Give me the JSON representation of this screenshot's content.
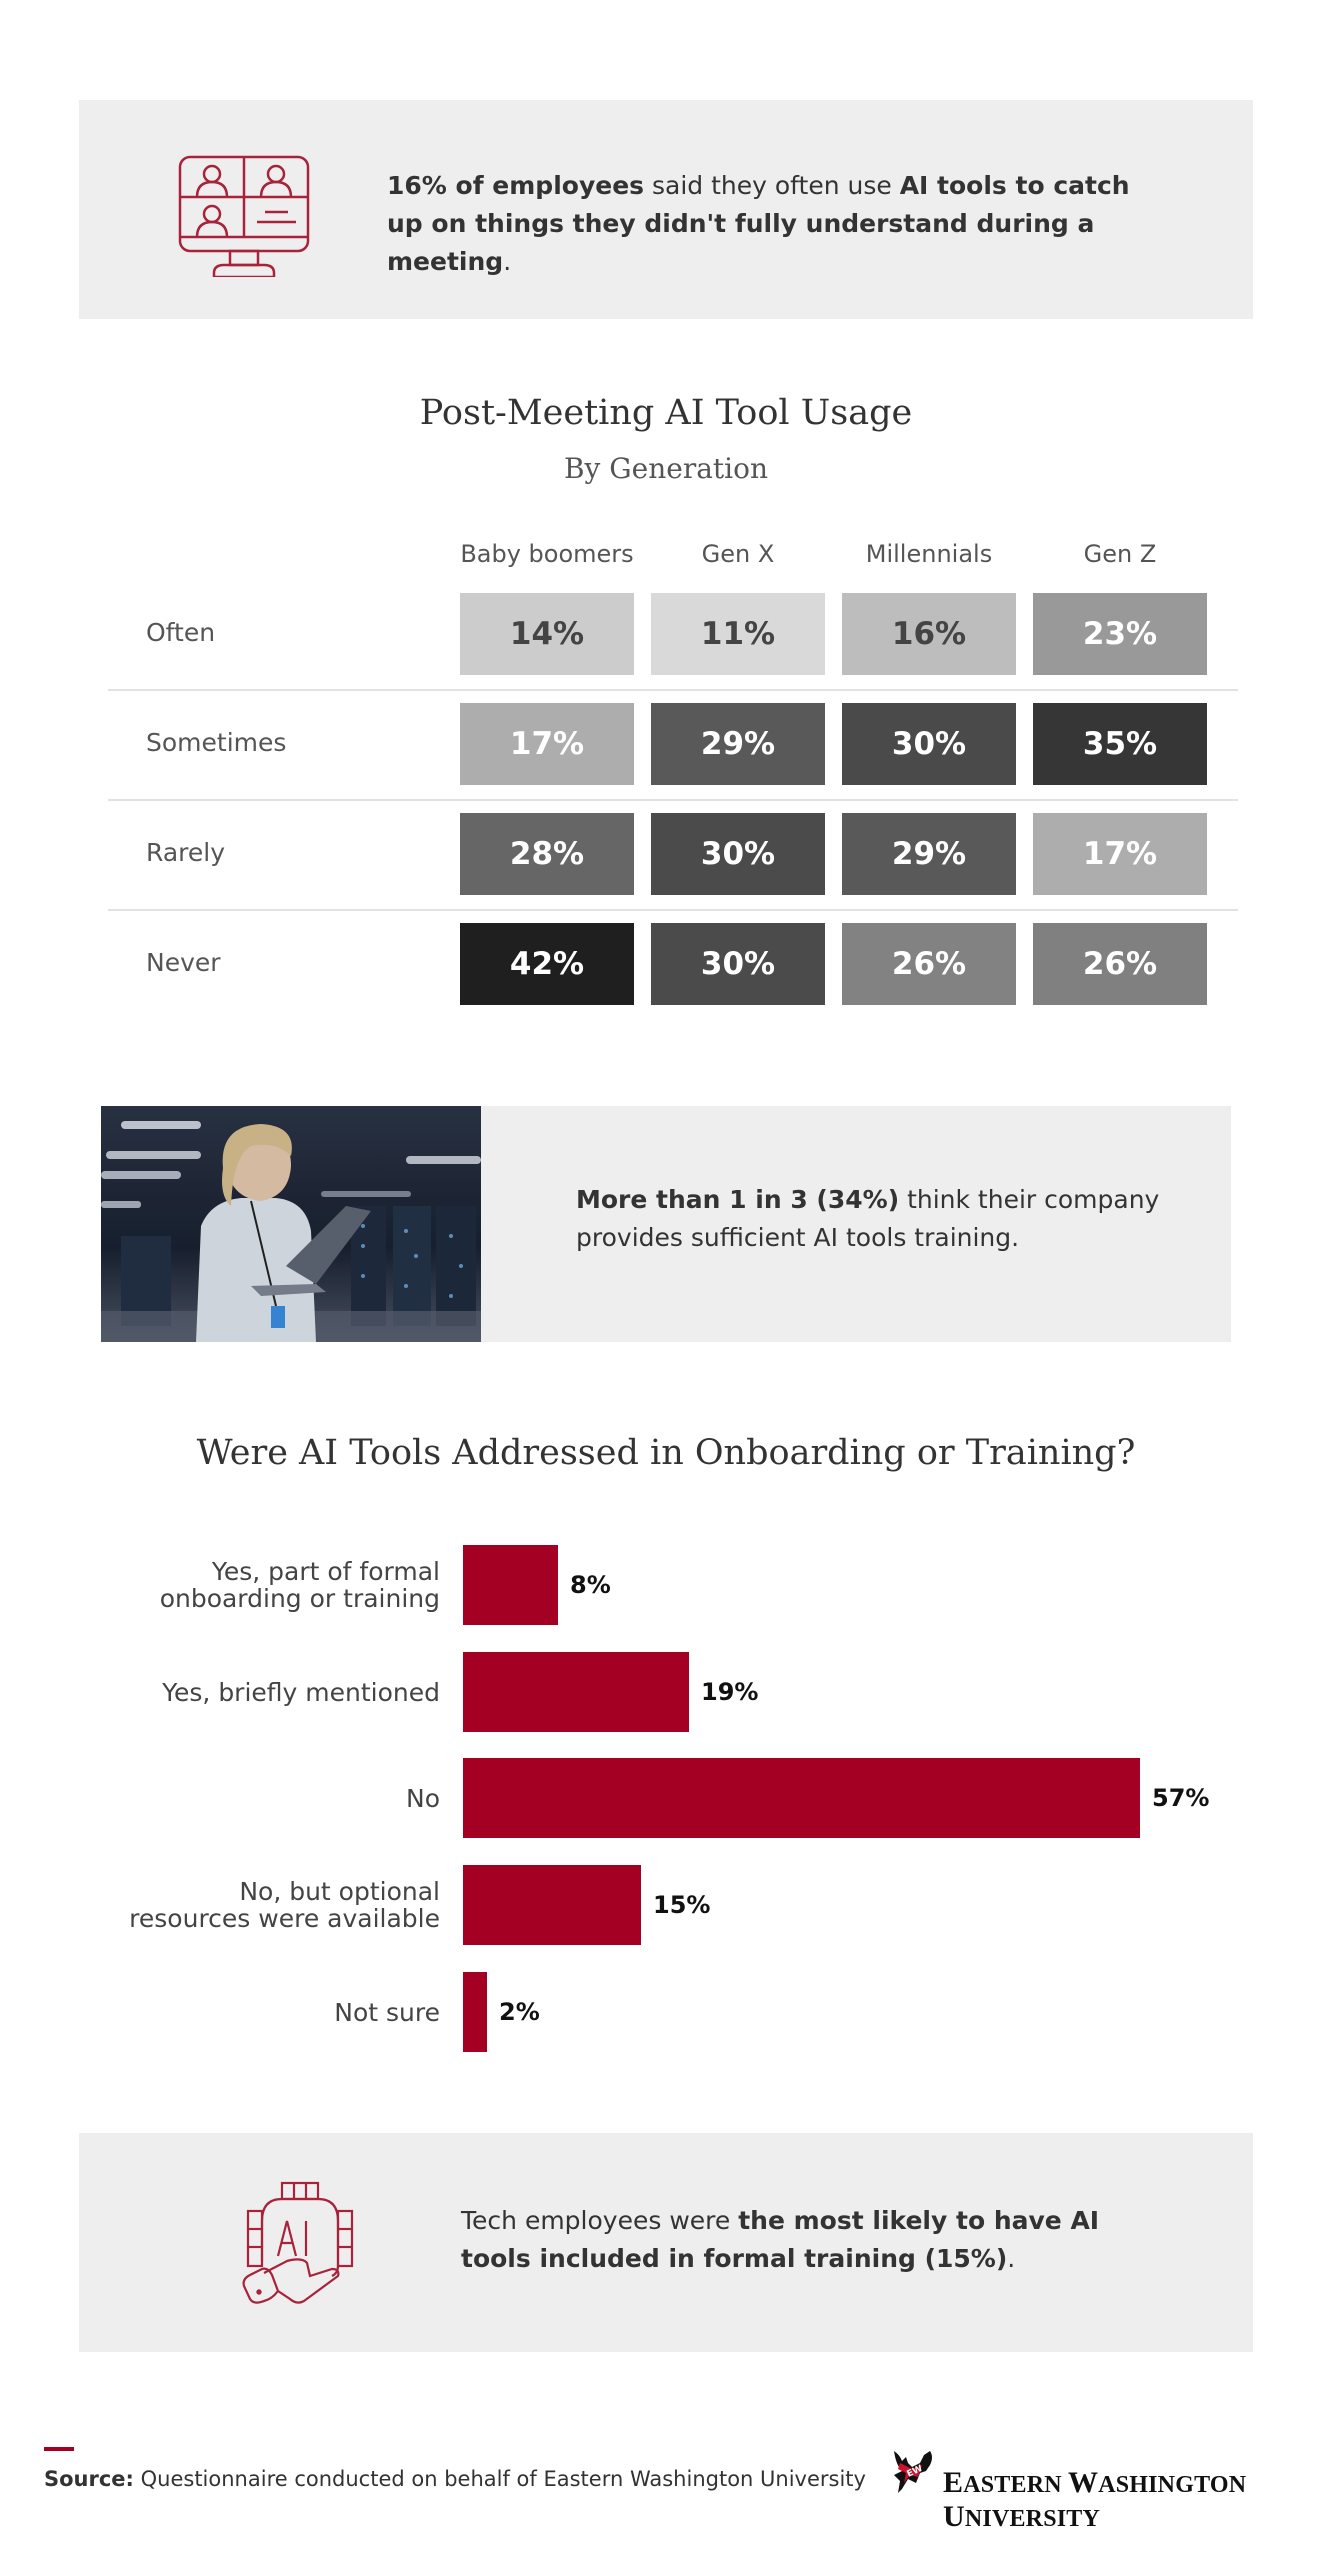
{
  "callout_top": {
    "icon": "video-conference-monitor-icon",
    "text_bold_1": "16% of employees",
    "text_1": " said they often use ",
    "text_bold_2": "AI tools to catch up on things they didn't fully understand during a meeting",
    "text_2": "."
  },
  "heatmap": {
    "title": "Post-Meeting AI Tool Usage",
    "subtitle": "By Generation",
    "columns": [
      "Baby boomers",
      "Gen X",
      "Millennials",
      "Gen Z"
    ],
    "rows": [
      {
        "label": "Often",
        "values": [
          "14%",
          "11%",
          "16%",
          "23%"
        ],
        "bg": [
          "#cccccc",
          "#d9d9d9",
          "#bdbdbd",
          "#999999"
        ],
        "fg": [
          "#444444",
          "#444444",
          "#444444",
          "#ffffff"
        ]
      },
      {
        "label": "Sometimes",
        "values": [
          "17%",
          "29%",
          "30%",
          "35%"
        ],
        "bg": [
          "#adadad",
          "#595959",
          "#4a4a4a",
          "#363636"
        ],
        "fg": [
          "#ffffff",
          "#ffffff",
          "#ffffff",
          "#ffffff"
        ]
      },
      {
        "label": "Rarely",
        "values": [
          "28%",
          "30%",
          "29%",
          "17%"
        ],
        "bg": [
          "#666666",
          "#4b4b4b",
          "#595959",
          "#adadad"
        ],
        "fg": [
          "#ffffff",
          "#ffffff",
          "#ffffff",
          "#ffffff"
        ]
      },
      {
        "label": "Never",
        "values": [
          "42%",
          "30%",
          "26%",
          "26%"
        ],
        "bg": [
          "#1f1f1f",
          "#4b4b4b",
          "#828282",
          "#808080"
        ],
        "fg": [
          "#ffffff",
          "#ffffff",
          "#ffffff",
          "#ffffff"
        ]
      }
    ]
  },
  "callout_middle": {
    "image": "woman-with-laptop-in-server-room-photo",
    "text_bold": "More than 1 in 3 (34%)",
    "text": " think their company provides sufficient AI tools training."
  },
  "bar_chart": {
    "title": "Were AI Tools Addressed in Onboarding or Training?",
    "bar_color": "#a30023",
    "items": [
      {
        "label_1": "Yes, part of formal",
        "label_2": "onboarding or training",
        "value": "8%"
      },
      {
        "label_1": "Yes, briefly mentioned",
        "label_2": "",
        "value": "19%"
      },
      {
        "label_1": "No",
        "label_2": "",
        "value": "57%"
      },
      {
        "label_1": "No, but optional",
        "label_2": "resources were available",
        "value": "15%"
      },
      {
        "label_1": "Not sure",
        "label_2": "",
        "value": "2%"
      }
    ]
  },
  "callout_bottom": {
    "icon": "ai-chip-in-hand-icon",
    "icon_text": "AI",
    "text_1": "Tech employees were ",
    "text_bold": "the most likely to have AI tools included in formal training (15%)",
    "text_2": "."
  },
  "footer": {
    "source_label": "Source:",
    "source_text": " Questionnaire conducted on behalf of Eastern Washington University",
    "logo_text_E": "E",
    "logo_text_1": "ASTERN ",
    "logo_text_W": "W",
    "logo_text_2": "ASHINGTON ",
    "logo_text_U": "U",
    "logo_text_3": "NIVERSITY",
    "accent": "#a30023"
  },
  "chart_data": [
    {
      "type": "heatmap",
      "title": "Post-Meeting AI Tool Usage",
      "subtitle": "By Generation",
      "x": [
        "Baby boomers",
        "Gen X",
        "Millennials",
        "Gen Z"
      ],
      "y": [
        "Often",
        "Sometimes",
        "Rarely",
        "Never"
      ],
      "values": [
        [
          14,
          11,
          16,
          23
        ],
        [
          17,
          29,
          30,
          35
        ],
        [
          28,
          30,
          29,
          17
        ],
        [
          42,
          30,
          26,
          26
        ]
      ],
      "unit": "%",
      "legend": "none",
      "grid": false
    },
    {
      "type": "bar",
      "orientation": "horizontal",
      "title": "Were AI Tools Addressed in Onboarding or Training?",
      "categories": [
        "Yes, part of formal onboarding or training",
        "Yes, briefly mentioned",
        "No",
        "No, but optional resources were available",
        "Not sure"
      ],
      "values": [
        8,
        19,
        57,
        15,
        2
      ],
      "unit": "%",
      "xlabel": "",
      "ylabel": "",
      "xlim": [
        0,
        60
      ],
      "grid": false,
      "legend": "none",
      "color": "#a30023"
    }
  ]
}
